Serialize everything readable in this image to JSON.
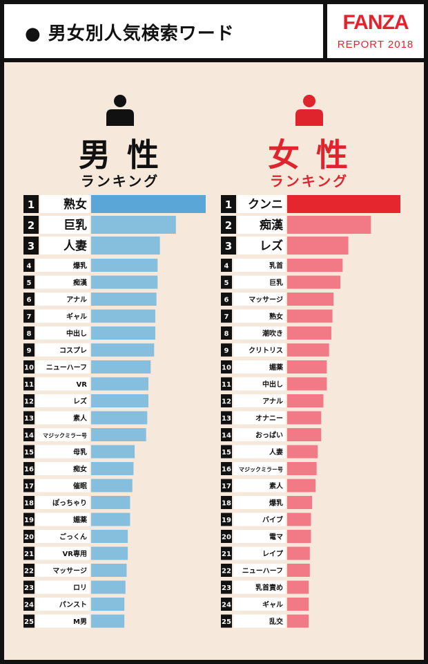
{
  "header": {
    "bullet": "●",
    "title": "男女別人気検索ワード",
    "logo_brand": "FANZA",
    "logo_sub": "REPORT 2018"
  },
  "colors": {
    "male_accent": "#111111",
    "female_accent": "#e0242e",
    "male_bar": "#86bfdd",
    "male_bar_top": "#5aa6d6",
    "female_bar": "#f27a87",
    "female_bar_top": "#e5262f",
    "background": "#f6e9dc"
  },
  "male": {
    "icon": "person-icon",
    "title": "男 性",
    "subtitle": "ランキング"
  },
  "female": {
    "icon": "person-icon",
    "title": "女 性",
    "subtitle": "ランキング"
  },
  "chart_data": [
    {
      "type": "bar",
      "orientation": "horizontal",
      "name": "男性ランキング",
      "ranks": [
        1,
        2,
        3,
        4,
        5,
        6,
        7,
        8,
        9,
        10,
        11,
        12,
        13,
        14,
        15,
        16,
        17,
        18,
        19,
        20,
        21,
        22,
        23,
        24,
        25
      ],
      "categories": [
        "熟女",
        "巨乳",
        "人妻",
        "爆乳",
        "痴漢",
        "アナル",
        "ギャル",
        "中出し",
        "コスプレ",
        "ニューハーフ",
        "VR",
        "レズ",
        "素人",
        "マジックミラー号",
        "母乳",
        "痴女",
        "催眠",
        "ぽっちゃり",
        "媚薬",
        "ごっくん",
        "VR専用",
        "マッサージ",
        "ロリ",
        "パンスト",
        "M男"
      ],
      "values": [
        100,
        74,
        60,
        58,
        58,
        57,
        56,
        56,
        55,
        52,
        50,
        50,
        49,
        48,
        38,
        37,
        36,
        34,
        34,
        32,
        32,
        31,
        30,
        29,
        29
      ],
      "xlim": [
        0,
        100
      ]
    },
    {
      "type": "bar",
      "orientation": "horizontal",
      "name": "女性ランキング",
      "ranks": [
        1,
        2,
        3,
        4,
        5,
        6,
        7,
        8,
        9,
        10,
        11,
        12,
        13,
        14,
        15,
        16,
        17,
        18,
        19,
        20,
        21,
        22,
        23,
        24,
        25
      ],
      "categories": [
        "クンニ",
        "痴漢",
        "レズ",
        "乳首",
        "巨乳",
        "マッサージ",
        "熟女",
        "潮吹き",
        "クリトリス",
        "媚薬",
        "中出し",
        "アナル",
        "オナニー",
        "おっぱい",
        "人妻",
        "マジックミラー号",
        "素人",
        "爆乳",
        "バイブ",
        "電マ",
        "レイプ",
        "ニューハーフ",
        "乳首責め",
        "ギャル",
        "乱交"
      ],
      "values": [
        100,
        74,
        54,
        49,
        47,
        41,
        40,
        39,
        37,
        35,
        35,
        32,
        30,
        30,
        27,
        26,
        25,
        22,
        21,
        21,
        20,
        20,
        19,
        19,
        19
      ],
      "xlim": [
        0,
        100
      ]
    }
  ]
}
